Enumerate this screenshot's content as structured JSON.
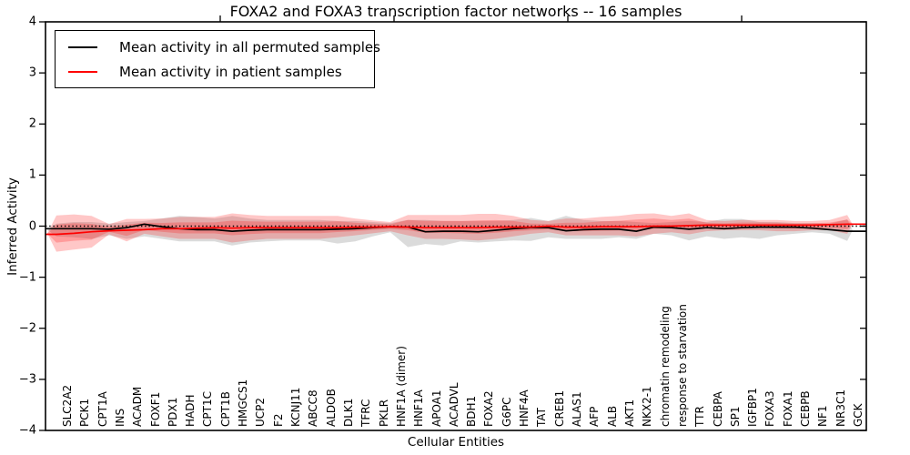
{
  "figure": {
    "title": "FOXA2 and FOXA3 transcription factor networks -- 16 samples",
    "xlabel": "Cellular Entities",
    "ylabel": "Inferred Activity",
    "background": "#ffffff"
  },
  "legend": {
    "items": [
      {
        "label": "Mean activity in all permuted samples",
        "color": "#000000"
      },
      {
        "label": "Mean activity in patient samples",
        "color": "#ff0000"
      }
    ]
  },
  "chart_data": {
    "type": "line",
    "title": "FOXA2 and FOXA3 transcription factor networks -- 16 samples",
    "xlabel": "Cellular Entities",
    "ylabel": "Inferred Activity",
    "ylim": [
      -4,
      4
    ],
    "grid": false,
    "legend_position": "upper left",
    "zero_line": {
      "style": "dotted",
      "color": "#000000",
      "y": 0
    },
    "yticks": [
      {
        "v": 4,
        "label": "4"
      },
      {
        "v": 3,
        "label": "3"
      },
      {
        "v": 2,
        "label": "2"
      },
      {
        "v": 1,
        "label": "1"
      },
      {
        "v": 0,
        "label": "0"
      },
      {
        "v": -1,
        "label": "−1"
      },
      {
        "v": -2,
        "label": "−2"
      },
      {
        "v": -3,
        "label": "−3"
      },
      {
        "v": -4,
        "label": "−4"
      }
    ],
    "categories": [
      "SLC2A2",
      "PCK1",
      "CPT1A",
      "INS",
      "ACADM",
      "FOXF1",
      "PDX1",
      "HADH",
      "CPT1C",
      "CPT1B",
      "HMGCS1",
      "UCP2",
      "F2",
      "KCNJ11",
      "ABCC8",
      "ALDOB",
      "DLK1",
      "TFRC",
      "PKLR",
      "HNF1A (dimer)",
      "HNF1A",
      "APOA1",
      "ACADVL",
      "BDH1",
      "FOXA2",
      "G6PC",
      "HNF4A",
      "TAT",
      "CREB1",
      "ALAS1",
      "AFP",
      "ALB",
      "AKT1",
      "NKX2-1",
      "chromatin remodeling",
      "response to starvation",
      "TTR",
      "CEBPA",
      "SP1",
      "IGFBP1",
      "FOXA3",
      "FOXA1",
      "CEBPB",
      "NF1",
      "NR3C1",
      "GCK"
    ],
    "series": [
      {
        "name": "Mean activity in all permuted samples",
        "color": "#000000",
        "values": [
          -0.05,
          -0.05,
          -0.05,
          -0.06,
          -0.03,
          0.04,
          -0.01,
          -0.05,
          -0.07,
          -0.07,
          -0.1,
          -0.08,
          -0.07,
          -0.07,
          -0.07,
          -0.07,
          -0.06,
          -0.05,
          -0.03,
          -0.01,
          -0.02,
          -0.11,
          -0.1,
          -0.1,
          -0.11,
          -0.08,
          -0.05,
          -0.03,
          -0.03,
          -0.09,
          -0.07,
          -0.06,
          -0.06,
          -0.1,
          -0.02,
          -0.03,
          -0.06,
          -0.03,
          -0.05,
          -0.03,
          -0.02,
          -0.02,
          -0.02,
          -0.04,
          -0.07,
          -0.1
        ]
      },
      {
        "name": "Mean activity in patient samples",
        "color": "#ff0000",
        "values": [
          -0.16,
          -0.14,
          -0.11,
          -0.09,
          -0.08,
          -0.07,
          -0.05,
          -0.05,
          -0.04,
          -0.03,
          -0.04,
          -0.03,
          -0.03,
          -0.03,
          -0.03,
          -0.03,
          -0.03,
          -0.02,
          -0.02,
          -0.01,
          -0.02,
          -0.03,
          -0.03,
          -0.03,
          -0.03,
          -0.02,
          -0.02,
          -0.02,
          0.0,
          -0.02,
          -0.02,
          -0.01,
          -0.01,
          -0.01,
          0.0,
          0.0,
          0.01,
          0.02,
          0.02,
          0.02,
          0.02,
          0.02,
          0.02,
          0.02,
          0.03,
          0.04
        ]
      }
    ],
    "bands": [
      {
        "name": "permuted-samples-range",
        "color": "rgba(90,90,90,0.22)",
        "double_layer": false,
        "upper": [
          0.05,
          0.08,
          0.08,
          0.05,
          0.08,
          0.1,
          0.15,
          0.2,
          0.18,
          0.15,
          0.2,
          0.15,
          0.12,
          0.12,
          0.12,
          0.12,
          0.1,
          0.1,
          0.08,
          0.06,
          0.12,
          0.12,
          0.1,
          0.1,
          0.1,
          0.1,
          0.12,
          0.16,
          0.1,
          0.2,
          0.12,
          0.1,
          0.1,
          0.08,
          0.06,
          0.08,
          0.1,
          0.08,
          0.14,
          0.14,
          0.08,
          0.08,
          0.06,
          0.06,
          0.05,
          0.13
        ],
        "lower": [
          -0.2,
          -0.22,
          -0.25,
          -0.18,
          -0.25,
          -0.2,
          -0.25,
          -0.3,
          -0.3,
          -0.3,
          -0.38,
          -0.32,
          -0.3,
          -0.28,
          -0.28,
          -0.28,
          -0.34,
          -0.3,
          -0.2,
          -0.12,
          -0.41,
          -0.35,
          -0.38,
          -0.3,
          -0.32,
          -0.3,
          -0.28,
          -0.29,
          -0.22,
          -0.25,
          -0.25,
          -0.25,
          -0.22,
          -0.25,
          -0.15,
          -0.18,
          -0.28,
          -0.2,
          -0.25,
          -0.22,
          -0.25,
          -0.18,
          -0.15,
          -0.12,
          -0.15,
          -0.29
        ]
      },
      {
        "name": "patient-samples-range",
        "color": "rgba(255,0,0,0.22)",
        "double_layer": true,
        "inner_scale": 0.5,
        "upper": [
          0.21,
          0.23,
          0.2,
          0.04,
          0.14,
          0.14,
          0.15,
          0.18,
          0.18,
          0.18,
          0.25,
          0.22,
          0.2,
          0.2,
          0.2,
          0.2,
          0.2,
          0.15,
          0.11,
          0.08,
          0.22,
          0.22,
          0.22,
          0.22,
          0.24,
          0.24,
          0.2,
          0.12,
          0.1,
          0.15,
          0.15,
          0.18,
          0.2,
          0.24,
          0.25,
          0.2,
          0.25,
          0.12,
          0.1,
          0.12,
          0.12,
          0.12,
          0.1,
          0.1,
          0.12,
          0.22
        ],
        "lower": [
          -0.5,
          -0.46,
          -0.42,
          -0.16,
          -0.3,
          -0.15,
          -0.2,
          -0.25,
          -0.25,
          -0.25,
          -0.32,
          -0.28,
          -0.25,
          -0.25,
          -0.25,
          -0.25,
          -0.22,
          -0.18,
          -0.14,
          -0.1,
          -0.18,
          -0.25,
          -0.25,
          -0.26,
          -0.28,
          -0.25,
          -0.2,
          -0.15,
          -0.12,
          -0.18,
          -0.18,
          -0.18,
          -0.18,
          -0.2,
          -0.15,
          -0.12,
          -0.16,
          -0.1,
          -0.08,
          -0.08,
          -0.08,
          -0.1,
          -0.1,
          -0.08,
          -0.08,
          -0.15
        ]
      }
    ]
  }
}
